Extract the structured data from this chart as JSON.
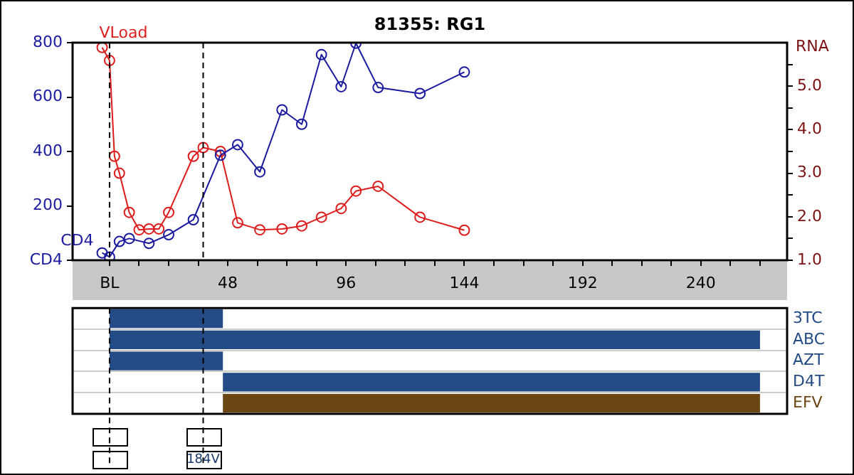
{
  "chart_data": [
    {
      "type": "line",
      "title": "81355: RG1",
      "y2label": "RNA",
      "xlim": [
        -15,
        275
      ],
      "xticks": [
        {
          "value": 0,
          "label": "BL"
        },
        {
          "value": 12,
          "label": null
        },
        {
          "value": 24,
          "label": null
        },
        {
          "value": 36,
          "label": null
        },
        48,
        {
          "value": 60,
          "label": null
        },
        {
          "value": 72,
          "label": null
        },
        {
          "value": 84,
          "label": null
        },
        96,
        {
          "value": 108,
          "label": null
        },
        {
          "value": 120,
          "label": null
        },
        {
          "value": 132,
          "label": null
        },
        144,
        {
          "value": 156,
          "label": null
        },
        {
          "value": 168,
          "label": null
        },
        {
          "value": 180,
          "label": null
        },
        192,
        {
          "value": 204,
          "label": null
        },
        {
          "value": 216,
          "label": null
        },
        {
          "value": 228,
          "label": null
        },
        240,
        {
          "value": 252,
          "label": null
        },
        {
          "value": 264,
          "label": null
        }
      ],
      "ylim": [
        0,
        800
      ],
      "yticks": [
        {
          "value": 0,
          "label": "CD4"
        },
        200,
        400,
        600,
        800
      ],
      "y2lim": [
        1,
        6
      ],
      "y2ticks": [
        {
          "value": 1,
          "label": "1.0"
        },
        {
          "value": 1.5,
          "label": null
        },
        {
          "value": 2,
          "label": "2.0"
        },
        {
          "value": 2.5,
          "label": null
        },
        {
          "value": 3,
          "label": "3.0"
        },
        {
          "value": 3.5,
          "label": null
        },
        {
          "value": 4,
          "label": "4.0"
        },
        {
          "value": 4.5,
          "label": null
        },
        {
          "value": 5,
          "label": "5.0"
        },
        {
          "value": 5.5,
          "label": null
        }
      ],
      "marker": "circle",
      "ref_lines": [
        {
          "axis": "x",
          "value": 0,
          "color": "#000000",
          "line_style": "dashed"
        },
        {
          "axis": "x",
          "value": 38,
          "color": "#000000",
          "line_style": "dashed"
        }
      ],
      "series": [
        {
          "name": "CD4",
          "color": "#1a1aa0",
          "x": [
            -3,
            0,
            4,
            8,
            16,
            24,
            34,
            45,
            52,
            61,
            70,
            78,
            86,
            94,
            100,
            109,
            126,
            144
          ],
          "values": [
            27,
            12,
            69,
            80,
            62,
            94,
            149,
            386,
            425,
            325,
            553,
            500,
            756,
            638,
            798,
            635,
            613,
            692
          ]
        },
        {
          "name": "VLoad",
          "color": "#dd1c1c",
          "axis": "y2",
          "x": [
            -3,
            0,
            2,
            4,
            8,
            12,
            16,
            20,
            24,
            34,
            38,
            45,
            52,
            61,
            70,
            78,
            86,
            94,
            100,
            109,
            126,
            144
          ],
          "values": [
            5.89,
            5.59,
            3.39,
            3.0,
            2.1,
            1.7,
            1.72,
            1.72,
            2.1,
            3.39,
            3.59,
            3.5,
            1.86,
            1.7,
            1.72,
            1.79,
            1.99,
            2.19,
            2.59,
            2.7,
            1.99,
            1.69
          ]
        }
      ]
    },
    {
      "type": "bar",
      "orientation": "horizontal",
      "xlim": [
        -15,
        275
      ],
      "tick_labels": "y",
      "grid": "y",
      "categories": [
        "3TC",
        "ABC",
        "AZT",
        "D4T",
        "EFV"
      ],
      "base": [
        0,
        0,
        0,
        46,
        46
      ],
      "values": [
        46,
        264,
        46,
        218,
        218
      ],
      "colors": [
        "#234b86",
        "#234b86",
        "#234b86",
        "#234b86",
        "#6b4514"
      ],
      "ref_lines": [
        {
          "axis": "x",
          "value": 0,
          "color": "#000000",
          "line_style": "dashed"
        },
        {
          "axis": "x",
          "value": 38,
          "color": "#000000",
          "line_style": "dashed"
        }
      ],
      "annotations": [
        {
          "text": "184V",
          "x": 38
        }
      ]
    }
  ]
}
